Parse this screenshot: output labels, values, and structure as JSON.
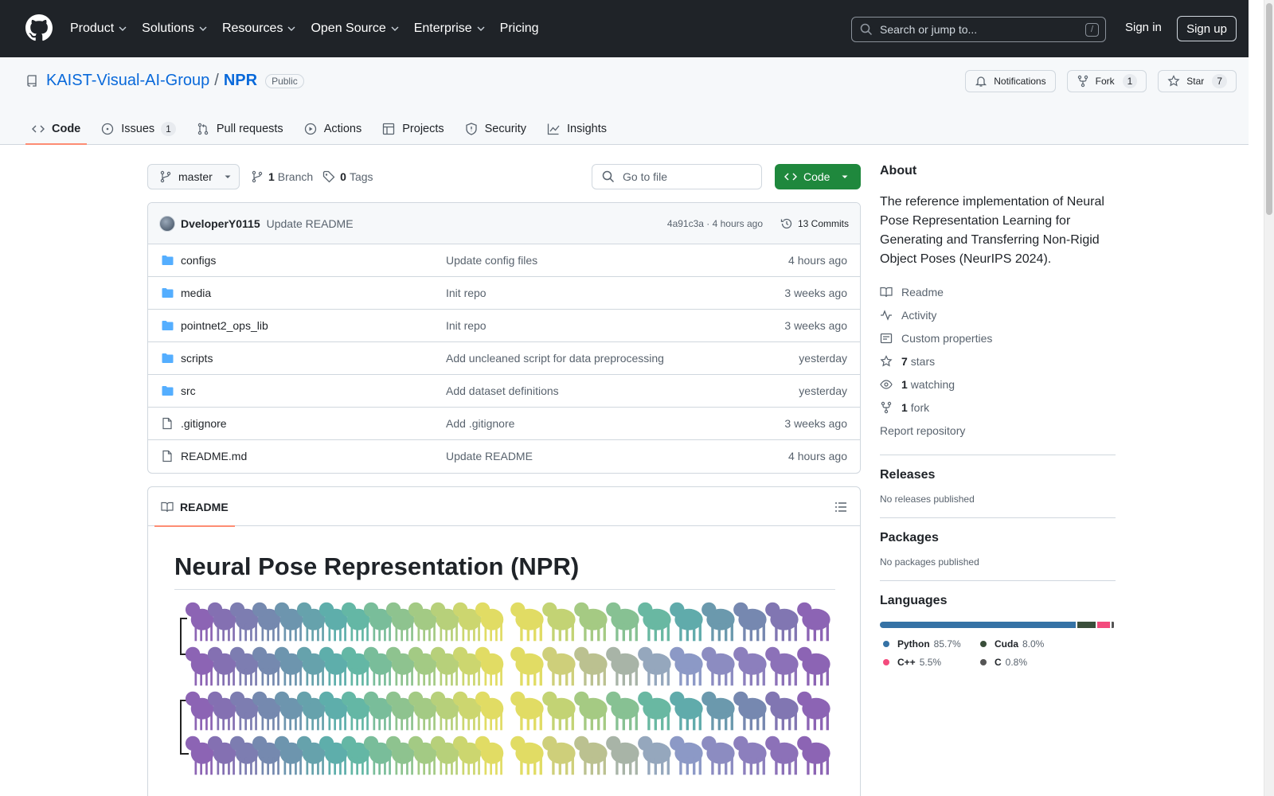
{
  "nav": {
    "items": [
      "Product",
      "Solutions",
      "Resources",
      "Open Source",
      "Enterprise",
      "Pricing"
    ],
    "search_placeholder": "Search or jump to...",
    "search_shortcut": "/",
    "sign_in": "Sign in",
    "sign_up": "Sign up"
  },
  "repo": {
    "owner": "KAIST-Visual-AI-Group",
    "separator": "/",
    "name": "NPR",
    "visibility": "Public",
    "buttons": {
      "notifications": "Notifications",
      "fork": "Fork",
      "fork_count": "1",
      "star": "Star",
      "star_count": "7"
    },
    "tabs": [
      {
        "label": "Code"
      },
      {
        "label": "Issues",
        "count": "1"
      },
      {
        "label": "Pull requests"
      },
      {
        "label": "Actions"
      },
      {
        "label": "Projects"
      },
      {
        "label": "Security"
      },
      {
        "label": "Insights"
      }
    ]
  },
  "toolbar": {
    "branch": "master",
    "branch_count": "1",
    "branch_label": "Branch",
    "tag_count": "0",
    "tag_label": "Tags",
    "go_to_file": "Go to file",
    "code_button": "Code"
  },
  "latest_commit": {
    "author": "DveloperY0115",
    "message": "Update README",
    "hash_time": "4a91c3a · 4 hours ago",
    "commits": "13 Commits"
  },
  "files": [
    {
      "name": "configs",
      "type": "folder",
      "message": "Update config files",
      "time": "4 hours ago"
    },
    {
      "name": "media",
      "type": "folder",
      "message": "Init repo",
      "time": "3 weeks ago"
    },
    {
      "name": "pointnet2_ops_lib",
      "type": "folder",
      "message": "Init repo",
      "time": "3 weeks ago"
    },
    {
      "name": "scripts",
      "type": "folder",
      "message": "Add uncleaned script for data preprocessing",
      "time": "yesterday"
    },
    {
      "name": "src",
      "type": "folder",
      "message": "Add dataset definitions",
      "time": "yesterday"
    },
    {
      "name": ".gitignore",
      "type": "file",
      "message": "Add .gitignore",
      "time": "3 weeks ago"
    },
    {
      "name": "README.md",
      "type": "file",
      "message": "Update README",
      "time": "4 hours ago"
    }
  ],
  "readme": {
    "tab": "README",
    "title": "Neural Pose Representation (NPR)"
  },
  "sidebar": {
    "about_title": "About",
    "description": "The reference implementation of Neural Pose Representation Learning for Generating and Transferring Non-Rigid Object Poses (NeurIPS 2024).",
    "readme": "Readme",
    "activity": "Activity",
    "custom_properties": "Custom properties",
    "stars_count": "7",
    "stars_label": "stars",
    "watching_count": "1",
    "watching_label": "watching",
    "fork_count": "1",
    "fork_label": "fork",
    "report": "Report repository",
    "releases_title": "Releases",
    "releases_text": "No releases published",
    "packages_title": "Packages",
    "packages_text": "No packages published",
    "languages_title": "Languages",
    "languages": [
      {
        "name": "Python",
        "percent": "85.7%",
        "value": 85.7,
        "color": "#3572A5"
      },
      {
        "name": "Cuda",
        "percent": "8.0%",
        "value": 8.0,
        "color": "#3A4E3A"
      },
      {
        "name": "C++",
        "percent": "5.5%",
        "value": 5.5,
        "color": "#f34b7d"
      },
      {
        "name": "C",
        "percent": "0.8%",
        "value": 0.8,
        "color": "#555555"
      }
    ]
  },
  "colors": {
    "header_bg": "#1f2328",
    "link": "#0969da",
    "green": "#1f883d",
    "tab_underline": "#fd8c73",
    "folder": "#54aeff"
  }
}
